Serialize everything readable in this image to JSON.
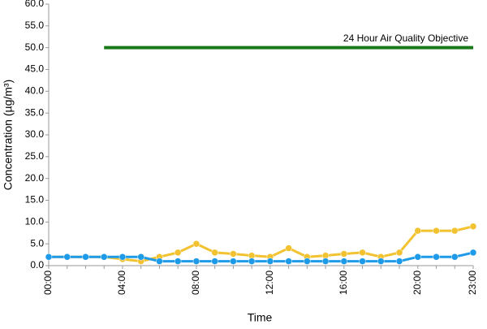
{
  "chart_data": {
    "type": "line",
    "x_label": "Time",
    "y_label": "Concentration (µg/m³)",
    "annotation": "24 Hour Air Quality Objective",
    "categories": [
      "00:00",
      null,
      null,
      null,
      "04:00",
      null,
      null,
      null,
      "08:00",
      null,
      null,
      null,
      "12:00",
      null,
      null,
      null,
      "16:00",
      null,
      null,
      null,
      "20:00",
      null,
      null,
      "23:00"
    ],
    "series": [
      {
        "color": "#1a7a1a",
        "marker": false,
        "values": [
          null,
          null,
          null,
          50,
          50,
          50,
          50,
          50,
          50,
          50,
          50,
          50,
          50,
          50,
          50,
          50,
          50,
          50,
          50,
          50,
          50,
          50,
          50,
          50
        ]
      },
      {
        "color": "#f2c230",
        "marker": true,
        "values": [
          2,
          2,
          2,
          2,
          1.5,
          1,
          2,
          3,
          5,
          3,
          2.7,
          2.3,
          2,
          4,
          2,
          2.3,
          2.7,
          3,
          2,
          3,
          8,
          8,
          8,
          9
        ]
      },
      {
        "color": "#1e9be8",
        "marker": true,
        "values": [
          2,
          2,
          2,
          2,
          2,
          2,
          1,
          1,
          1,
          1,
          1,
          1,
          1,
          1,
          1,
          1,
          1,
          1,
          1,
          1,
          2,
          2,
          2,
          3
        ]
      }
    ],
    "ylim": [
      0,
      60
    ],
    "yticks": [
      {
        "value": 0,
        "label": "0.0"
      },
      {
        "value": 5,
        "label": "5.0"
      },
      {
        "value": 10,
        "label": "10.0"
      },
      {
        "value": 15,
        "label": "15.0"
      },
      {
        "value": 20,
        "label": "20.0"
      },
      {
        "value": 25,
        "label": "25.0"
      },
      {
        "value": 30,
        "label": "30.0"
      },
      {
        "value": 35,
        "label": "35.0"
      },
      {
        "value": 40,
        "label": "40.0"
      },
      {
        "value": 45,
        "label": "45.0"
      },
      {
        "value": 50,
        "label": "50.0"
      },
      {
        "value": 55,
        "label": "55.0"
      },
      {
        "value": 60,
        "label": "60.0"
      }
    ]
  }
}
